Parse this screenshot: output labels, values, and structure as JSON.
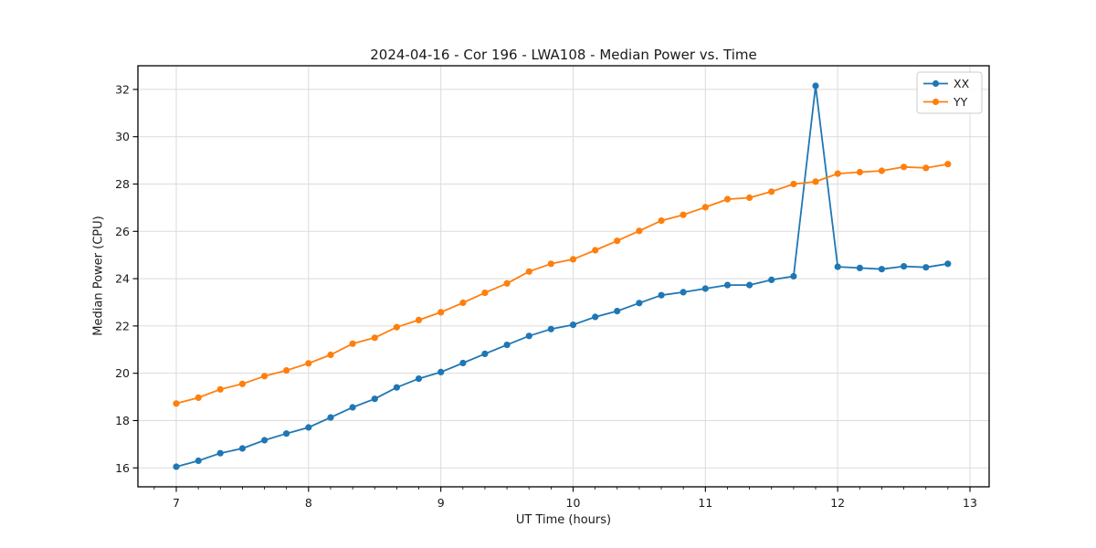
{
  "figure": {
    "background": "#ffffff",
    "frame_color": "#000000",
    "grid_color": "#dbdbdb",
    "text_color": "#1a1a1a"
  },
  "chart_data": {
    "type": "line",
    "title": "2024-04-16 - Cor 196 - LWA108 - Median Power vs. Time",
    "xlabel": "UT Time (hours)",
    "ylabel": "Median Power (CPU)",
    "x": [
      7.0,
      7.167,
      7.333,
      7.5,
      7.667,
      7.833,
      8.0,
      8.167,
      8.333,
      8.5,
      8.667,
      8.833,
      9.0,
      9.167,
      9.333,
      9.5,
      9.667,
      9.833,
      10.0,
      10.167,
      10.333,
      10.5,
      10.667,
      10.833,
      11.0,
      11.167,
      11.333,
      11.5,
      11.667,
      11.833,
      12.0,
      12.167,
      12.333,
      12.5,
      12.667,
      12.833
    ],
    "series": [
      {
        "name": "XX",
        "color": "#1f77b4",
        "values": [
          16.05,
          16.3,
          16.62,
          16.82,
          17.17,
          17.45,
          17.71,
          18.13,
          18.56,
          18.92,
          19.4,
          19.77,
          20.05,
          20.43,
          20.82,
          21.2,
          21.58,
          21.87,
          22.05,
          22.38,
          22.63,
          22.97,
          23.3,
          23.43,
          23.58,
          23.73,
          23.73,
          23.95,
          24.1,
          32.15,
          24.5,
          24.45,
          24.4,
          24.52,
          24.48,
          24.63
        ]
      },
      {
        "name": "YY",
        "color": "#ff7f0e",
        "values": [
          18.72,
          18.97,
          19.32,
          19.55,
          19.88,
          20.12,
          20.42,
          20.78,
          21.25,
          21.5,
          21.95,
          22.25,
          22.58,
          22.98,
          23.4,
          23.8,
          24.3,
          24.63,
          24.82,
          25.2,
          25.6,
          26.02,
          26.45,
          26.7,
          27.02,
          27.36,
          27.42,
          27.68,
          28.0,
          28.1,
          28.44,
          28.5,
          28.56,
          28.72,
          28.68,
          28.84
        ]
      }
    ],
    "xlim": [
      6.71,
      13.145
    ],
    "ylim": [
      15.2,
      33.0
    ],
    "xticks": [
      7,
      8,
      9,
      10,
      11,
      12,
      13
    ],
    "yticks": [
      16,
      18,
      20,
      22,
      24,
      26,
      28,
      30,
      32
    ],
    "x_minor_step": 0.1666667,
    "grid": true,
    "legend_position": "upper right",
    "legend_labels": [
      "XX",
      "YY"
    ]
  }
}
